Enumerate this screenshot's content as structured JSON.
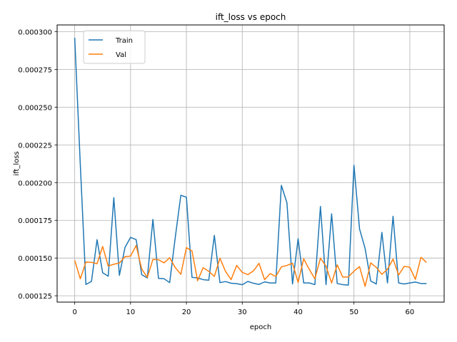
{
  "chart_data": {
    "type": "line",
    "title": "ift_loss vs epoch",
    "xlabel": "epoch",
    "ylabel": "ift_loss",
    "xlim": [
      -3.15,
      66.15
    ],
    "ylim": [
      0.0001208,
      0.0003045
    ],
    "xticks": [
      0,
      10,
      20,
      30,
      40,
      50,
      60
    ],
    "yticks": [
      0.000125,
      0.00015,
      0.000175,
      0.0002,
      0.000225,
      0.00025,
      0.000275,
      0.0003
    ],
    "ytick_labels": [
      "0.000125",
      "0.000150",
      "0.000175",
      "0.000200",
      "0.000225",
      "0.000250",
      "0.000275",
      "0.000300"
    ],
    "grid": true,
    "legend_position": "top-left",
    "colors": {
      "Train": "#1f77b4",
      "Val": "#ff7f0e"
    },
    "x": [
      0,
      1,
      2,
      3,
      4,
      5,
      6,
      7,
      8,
      9,
      10,
      11,
      12,
      13,
      14,
      15,
      16,
      17,
      18,
      19,
      20,
      21,
      22,
      23,
      24,
      25,
      26,
      27,
      28,
      29,
      30,
      31,
      32,
      33,
      34,
      35,
      36,
      37,
      38,
      39,
      40,
      41,
      42,
      43,
      44,
      45,
      46,
      47,
      48,
      49,
      50,
      51,
      52,
      53,
      54,
      55,
      56,
      57,
      58,
      59,
      60,
      61,
      62,
      63
    ],
    "series": [
      {
        "name": "Train",
        "values": [
          0.000296,
          0.000212,
          0.0001325,
          0.0001345,
          0.0001622,
          0.0001403,
          0.000138,
          0.00019,
          0.0001385,
          0.000157,
          0.0001637,
          0.0001622,
          0.000139,
          0.0001368,
          0.0001756,
          0.0001365,
          0.0001363,
          0.0001337,
          0.0001636,
          0.0001916,
          0.0001903,
          0.0001372,
          0.0001368,
          0.0001357,
          0.0001353,
          0.000165,
          0.0001337,
          0.0001344,
          0.0001333,
          0.000133,
          0.0001323,
          0.0001345,
          0.0001333,
          0.0001325,
          0.0001342,
          0.0001335,
          0.0001335,
          0.0001982,
          0.0001866,
          0.0001328,
          0.0001628,
          0.0001335,
          0.0001335,
          0.0001324,
          0.0001842,
          0.0001324,
          0.0001793,
          0.0001331,
          0.0001324,
          0.0001321,
          0.0002115,
          0.0001693,
          0.0001563,
          0.0001348,
          0.0001328,
          0.000167,
          0.0001335,
          0.0001777,
          0.0001335,
          0.0001328,
          0.0001335,
          0.0001341,
          0.0001331,
          0.0001331
        ]
      },
      {
        "name": "Val",
        "values": [
          0.0001485,
          0.0001362,
          0.0001473,
          0.0001472,
          0.0001462,
          0.0001577,
          0.0001447,
          0.0001459,
          0.0001467,
          0.0001509,
          0.0001513,
          0.0001583,
          0.0001427,
          0.0001372,
          0.0001491,
          0.0001489,
          0.0001468,
          0.0001502,
          0.0001437,
          0.0001392,
          0.0001569,
          0.0001547,
          0.000135,
          0.0001436,
          0.0001412,
          0.0001378,
          0.0001499,
          0.0001412,
          0.0001357,
          0.0001451,
          0.0001405,
          0.000139,
          0.0001415,
          0.0001465,
          0.0001357,
          0.0001397,
          0.0001378,
          0.0001441,
          0.0001451,
          0.0001466,
          0.0001338,
          0.0001495,
          0.0001425,
          0.0001362,
          0.0001499,
          0.0001446,
          0.0001335,
          0.0001455,
          0.0001374,
          0.0001375,
          0.0001413,
          0.0001443,
          0.0001312,
          0.0001468,
          0.0001438,
          0.0001392,
          0.0001426,
          0.0001493,
          0.0001388,
          0.0001445,
          0.0001439,
          0.0001359,
          0.0001505,
          0.0001471
        ]
      }
    ]
  }
}
